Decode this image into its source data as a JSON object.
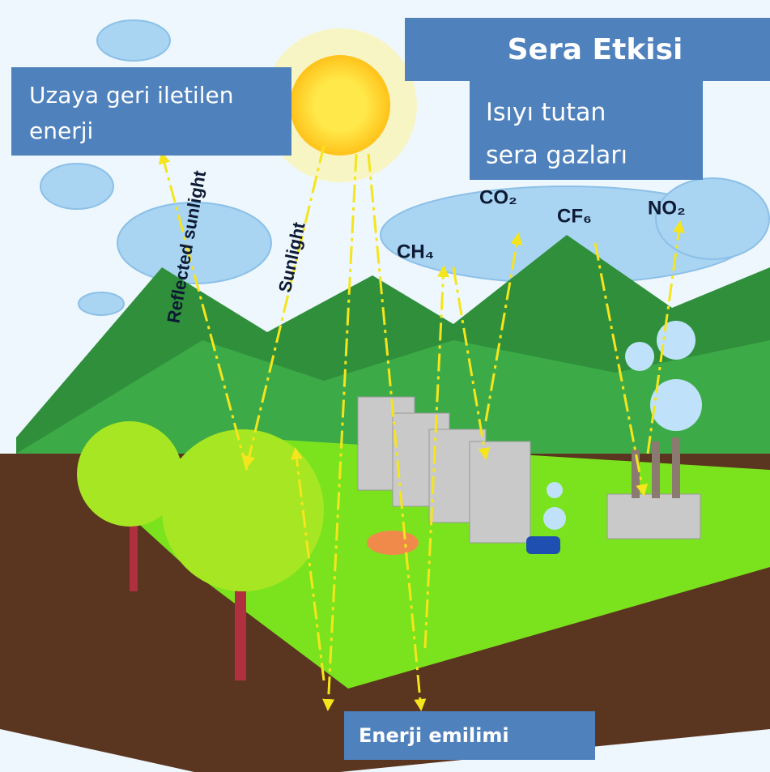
{
  "title": "Sera Etkisi",
  "labels": {
    "space": {
      "lines": [
        "Uzaya geri iletilen",
        "enerji"
      ]
    },
    "gases": {
      "lines": [
        "Isıyı tutan",
        "sera gazları"
      ]
    },
    "absorption": "Enerji emilimi",
    "reflected_sunlight": "Reflected sunlight",
    "sunlight": "Sunlight"
  },
  "gas_names": [
    "CO₂",
    "CF₆",
    "NO₂",
    "CH₄"
  ]
}
